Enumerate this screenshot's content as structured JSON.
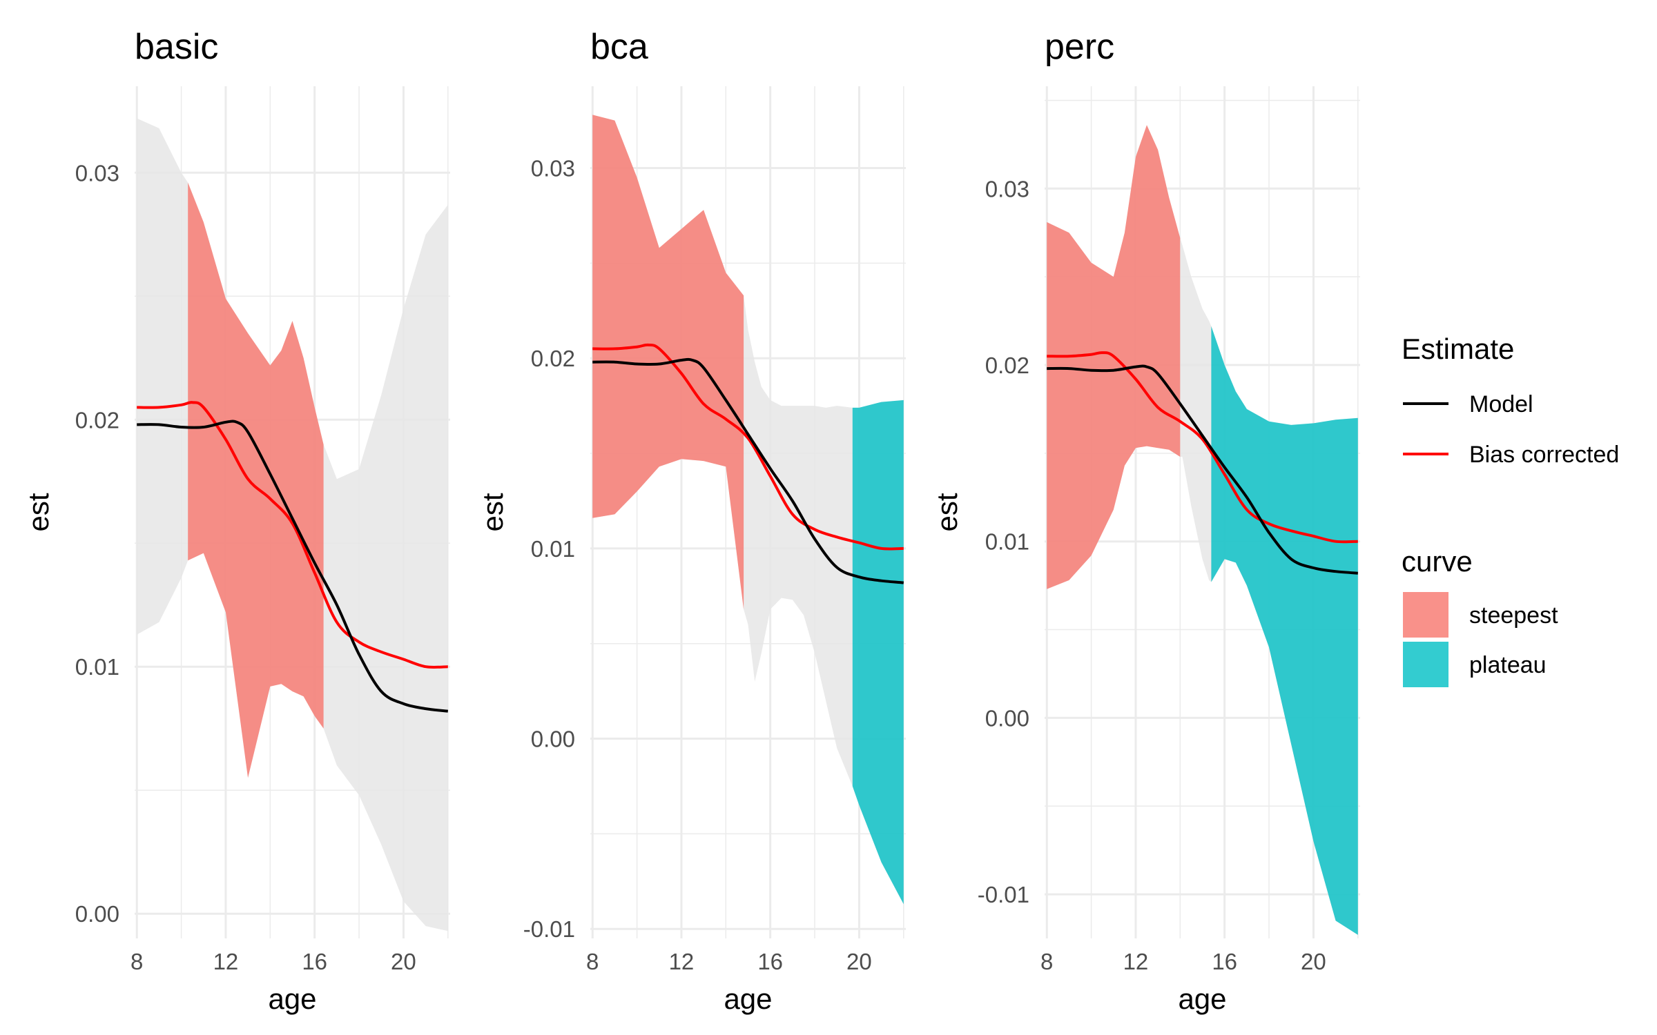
{
  "chart_data": [
    {
      "type": "area",
      "title": "basic",
      "xlabel": "age",
      "ylabel": "est",
      "xlim": [
        7.9,
        22.1
      ],
      "ylim": [
        -0.001,
        0.0335
      ],
      "xticks": [
        8,
        12,
        16,
        20
      ],
      "xtick_labels": [
        "8",
        "12",
        "16",
        "20"
      ],
      "yticks": [
        0.0,
        0.01,
        0.02,
        0.03
      ],
      "ytick_labels": [
        "0.00",
        "0.01",
        "0.02",
        "0.03"
      ],
      "grid": true,
      "ribbon": {
        "x": [
          8,
          9,
          10,
          10.3,
          11,
          12,
          13,
          14,
          14.5,
          15,
          15.5,
          16,
          16.4,
          17,
          18,
          19,
          20,
          21,
          22
        ],
        "lower": [
          0.0113,
          0.0118,
          0.0136,
          0.0143,
          0.0146,
          0.0122,
          0.0055,
          0.0092,
          0.0093,
          0.009,
          0.0088,
          0.008,
          0.0075,
          0.006,
          0.0048,
          0.0028,
          0.0005,
          -0.0005,
          -0.0007
        ],
        "upper": [
          0.0322,
          0.0318,
          0.03,
          0.0296,
          0.028,
          0.0249,
          0.0235,
          0.0222,
          0.0228,
          0.024,
          0.0225,
          0.0205,
          0.019,
          0.0176,
          0.018,
          0.021,
          0.0245,
          0.0275,
          0.0287
        ],
        "curve": [
          "",
          "",
          "",
          "steepest",
          "steepest",
          "steepest",
          "steepest",
          "steepest",
          "steepest",
          "steepest",
          "steepest",
          "steepest",
          "steepest",
          "",
          "",
          "",
          "",
          "",
          ""
        ]
      },
      "series": [
        {
          "name": "Model",
          "x": [
            8,
            9,
            10,
            11,
            12,
            12.5,
            13,
            14,
            15,
            16,
            17,
            18,
            19,
            20,
            21,
            22
          ],
          "values": [
            0.0198,
            0.0198,
            0.0197,
            0.0197,
            0.0199,
            0.0199,
            0.0195,
            0.0178,
            0.016,
            0.0142,
            0.0125,
            0.0105,
            0.009,
            0.0085,
            0.0083,
            0.0082
          ]
        },
        {
          "name": "Bias corrected",
          "x": [
            8,
            9,
            10,
            10.5,
            11,
            12,
            13,
            14,
            15,
            16,
            17,
            18,
            19,
            20,
            21,
            22
          ],
          "values": [
            0.0205,
            0.0205,
            0.0206,
            0.0207,
            0.0205,
            0.0192,
            0.0176,
            0.0168,
            0.0158,
            0.0138,
            0.0118,
            0.011,
            0.0106,
            0.0103,
            0.01,
            0.01
          ]
        }
      ]
    },
    {
      "type": "area",
      "title": "bca",
      "xlabel": "age",
      "ylabel": "est",
      "xlim": [
        7.9,
        22.1
      ],
      "ylim": [
        -0.0105,
        0.0343
      ],
      "xticks": [
        8,
        12,
        16,
        20
      ],
      "xtick_labels": [
        "8",
        "12",
        "16",
        "20"
      ],
      "yticks": [
        -0.01,
        0.0,
        0.01,
        0.02,
        0.03
      ],
      "ytick_labels": [
        "-0.01",
        "0.00",
        "0.01",
        "0.02",
        "0.03"
      ],
      "grid": true,
      "ribbon": {
        "x": [
          8,
          9,
          10,
          11,
          12,
          13,
          14,
          14.8,
          15,
          15.3,
          15.6,
          16,
          16.5,
          17,
          17.5,
          18,
          18.5,
          19,
          19.7,
          20,
          21,
          22
        ],
        "lower": [
          0.0116,
          0.0118,
          0.013,
          0.0143,
          0.0147,
          0.0146,
          0.0143,
          0.0068,
          0.006,
          0.003,
          0.0045,
          0.0068,
          0.0074,
          0.0073,
          0.0065,
          0.0045,
          0.002,
          -0.0005,
          -0.0025,
          -0.0035,
          -0.0065,
          -0.0087
        ],
        "upper": [
          0.0328,
          0.0325,
          0.0295,
          0.0258,
          0.0268,
          0.0278,
          0.0245,
          0.0233,
          0.0215,
          0.0198,
          0.0185,
          0.0178,
          0.0175,
          0.0175,
          0.0175,
          0.0175,
          0.0174,
          0.0175,
          0.0174,
          0.0174,
          0.0177,
          0.0178
        ],
        "curve": [
          "steepest",
          "steepest",
          "steepest",
          "steepest",
          "steepest",
          "steepest",
          "steepest",
          "steepest",
          "",
          "",
          "",
          "",
          "",
          "",
          "",
          "",
          "",
          "",
          "plateau",
          "plateau",
          "plateau",
          "plateau"
        ]
      },
      "series": [
        {
          "name": "Model",
          "x": [
            8,
            9,
            10,
            11,
            12,
            12.5,
            13,
            14,
            15,
            16,
            17,
            18,
            19,
            20,
            21,
            22
          ],
          "values": [
            0.0198,
            0.0198,
            0.0197,
            0.0197,
            0.0199,
            0.0199,
            0.0195,
            0.0178,
            0.016,
            0.0142,
            0.0125,
            0.0105,
            0.009,
            0.0085,
            0.0083,
            0.0082
          ]
        },
        {
          "name": "Bias corrected",
          "x": [
            8,
            9,
            10,
            10.5,
            11,
            12,
            13,
            14,
            15,
            16,
            17,
            18,
            19,
            20,
            21,
            22
          ],
          "values": [
            0.0205,
            0.0205,
            0.0206,
            0.0207,
            0.0205,
            0.0192,
            0.0176,
            0.0168,
            0.0158,
            0.0138,
            0.0118,
            0.011,
            0.0106,
            0.0103,
            0.01,
            0.01
          ]
        }
      ]
    },
    {
      "type": "area",
      "title": "perc",
      "xlabel": "age",
      "ylabel": "est",
      "xlim": [
        7.9,
        22.1
      ],
      "ylim": [
        -0.0125,
        0.0358
      ],
      "xticks": [
        8,
        12,
        16,
        20
      ],
      "xtick_labels": [
        "8",
        "12",
        "16",
        "20"
      ],
      "yticks": [
        -0.01,
        0.0,
        0.01,
        0.02,
        0.03
      ],
      "ytick_labels": [
        "-0.01",
        "0.00",
        "0.01",
        "0.02",
        "0.03"
      ],
      "grid": true,
      "ribbon": {
        "x": [
          8,
          9,
          10,
          11,
          11.5,
          12,
          12.5,
          13,
          13.5,
          14,
          14.1,
          14.5,
          15,
          15.3,
          15.4,
          16,
          16.5,
          17,
          18,
          19,
          20,
          21,
          22
        ],
        "lower": [
          0.0073,
          0.0078,
          0.0092,
          0.0118,
          0.0143,
          0.0153,
          0.0154,
          0.0153,
          0.0152,
          0.0148,
          0.0148,
          0.012,
          0.009,
          0.0078,
          0.0077,
          0.009,
          0.0088,
          0.0075,
          0.004,
          -0.0015,
          -0.007,
          -0.0115,
          -0.0123
        ],
        "upper": [
          0.0281,
          0.0275,
          0.0258,
          0.025,
          0.0275,
          0.0318,
          0.0336,
          0.0322,
          0.0295,
          0.0272,
          0.0268,
          0.025,
          0.0232,
          0.0225,
          0.0222,
          0.02,
          0.0185,
          0.0175,
          0.0168,
          0.0166,
          0.0167,
          0.0169,
          0.017
        ],
        "curve": [
          "steepest",
          "steepest",
          "steepest",
          "steepest",
          "steepest",
          "steepest",
          "steepest",
          "steepest",
          "steepest",
          "steepest",
          "",
          "",
          "",
          "",
          "plateau",
          "plateau",
          "plateau",
          "plateau",
          "plateau",
          "plateau",
          "plateau",
          "plateau",
          "plateau"
        ]
      },
      "series": [
        {
          "name": "Model",
          "x": [
            8,
            9,
            10,
            11,
            12,
            12.5,
            13,
            14,
            15,
            16,
            17,
            18,
            19,
            20,
            21,
            22
          ],
          "values": [
            0.0198,
            0.0198,
            0.0197,
            0.0197,
            0.0199,
            0.0199,
            0.0195,
            0.0178,
            0.016,
            0.0142,
            0.0125,
            0.0105,
            0.009,
            0.0085,
            0.0083,
            0.0082
          ]
        },
        {
          "name": "Bias corrected",
          "x": [
            8,
            9,
            10,
            10.5,
            11,
            12,
            13,
            14,
            15,
            16,
            17,
            18,
            19,
            20,
            21,
            22
          ],
          "values": [
            0.0205,
            0.0205,
            0.0206,
            0.0207,
            0.0205,
            0.0192,
            0.0176,
            0.0168,
            0.0158,
            0.0138,
            0.0118,
            0.011,
            0.0106,
            0.0103,
            0.01,
            0.01
          ]
        }
      ]
    }
  ],
  "legend": {
    "estimate_title": "Estimate",
    "estimate_items": [
      "Model",
      "Bias corrected"
    ],
    "curve_title": "curve",
    "curve_items": [
      "steepest",
      "plateau"
    ]
  },
  "colors": {
    "model": "#000000",
    "bias_corrected": "#ff0000",
    "steepest": "#f8766d",
    "plateau": "#00bfc4",
    "ribbon": "#e6e6e6",
    "grid": "#ebebeb"
  }
}
